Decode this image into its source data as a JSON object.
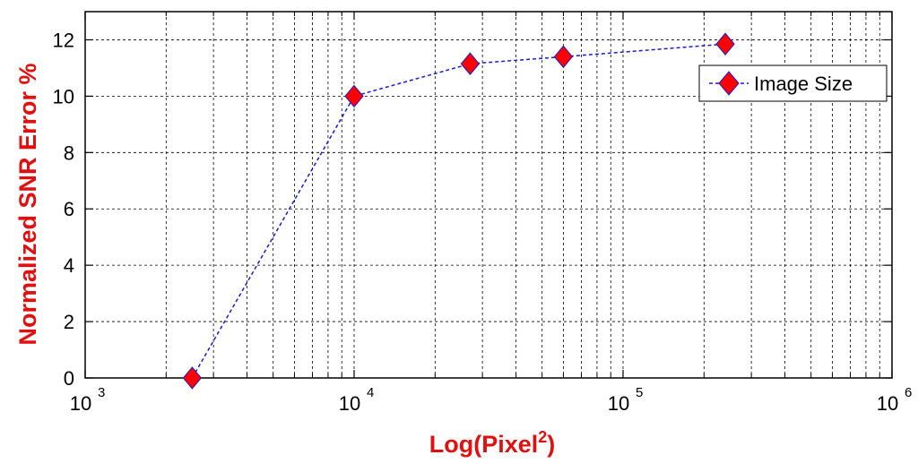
{
  "chart_data": {
    "type": "line",
    "title": "",
    "xlabel": {
      "base": "Log(Pixel",
      "superscript": "2",
      "suffix": ")"
    },
    "ylabel": "Normalized SNR Error %",
    "x_scale": "log",
    "xlim": [
      1000,
      1000000
    ],
    "ylim": [
      0,
      13
    ],
    "x_ticks": [
      {
        "base": "10",
        "exp": "3",
        "value": 1000
      },
      {
        "base": "10",
        "exp": "4",
        "value": 10000
      },
      {
        "base": "10",
        "exp": "5",
        "value": 100000
      },
      {
        "base": "10",
        "exp": "6",
        "value": 1000000
      }
    ],
    "y_ticks": [
      "0",
      "2",
      "4",
      "6",
      "8",
      "10",
      "12"
    ],
    "grid": true,
    "legend_position": "top-right",
    "series": [
      {
        "name": "Image Size",
        "line_color": "#1a1ad0",
        "line_style": "dashed",
        "marker": "diamond",
        "marker_color": "#ff0000",
        "x": [
          2500,
          10000,
          27000,
          60000,
          240000
        ],
        "y": [
          0.0,
          10.0,
          11.15,
          11.4,
          11.85
        ]
      }
    ]
  }
}
